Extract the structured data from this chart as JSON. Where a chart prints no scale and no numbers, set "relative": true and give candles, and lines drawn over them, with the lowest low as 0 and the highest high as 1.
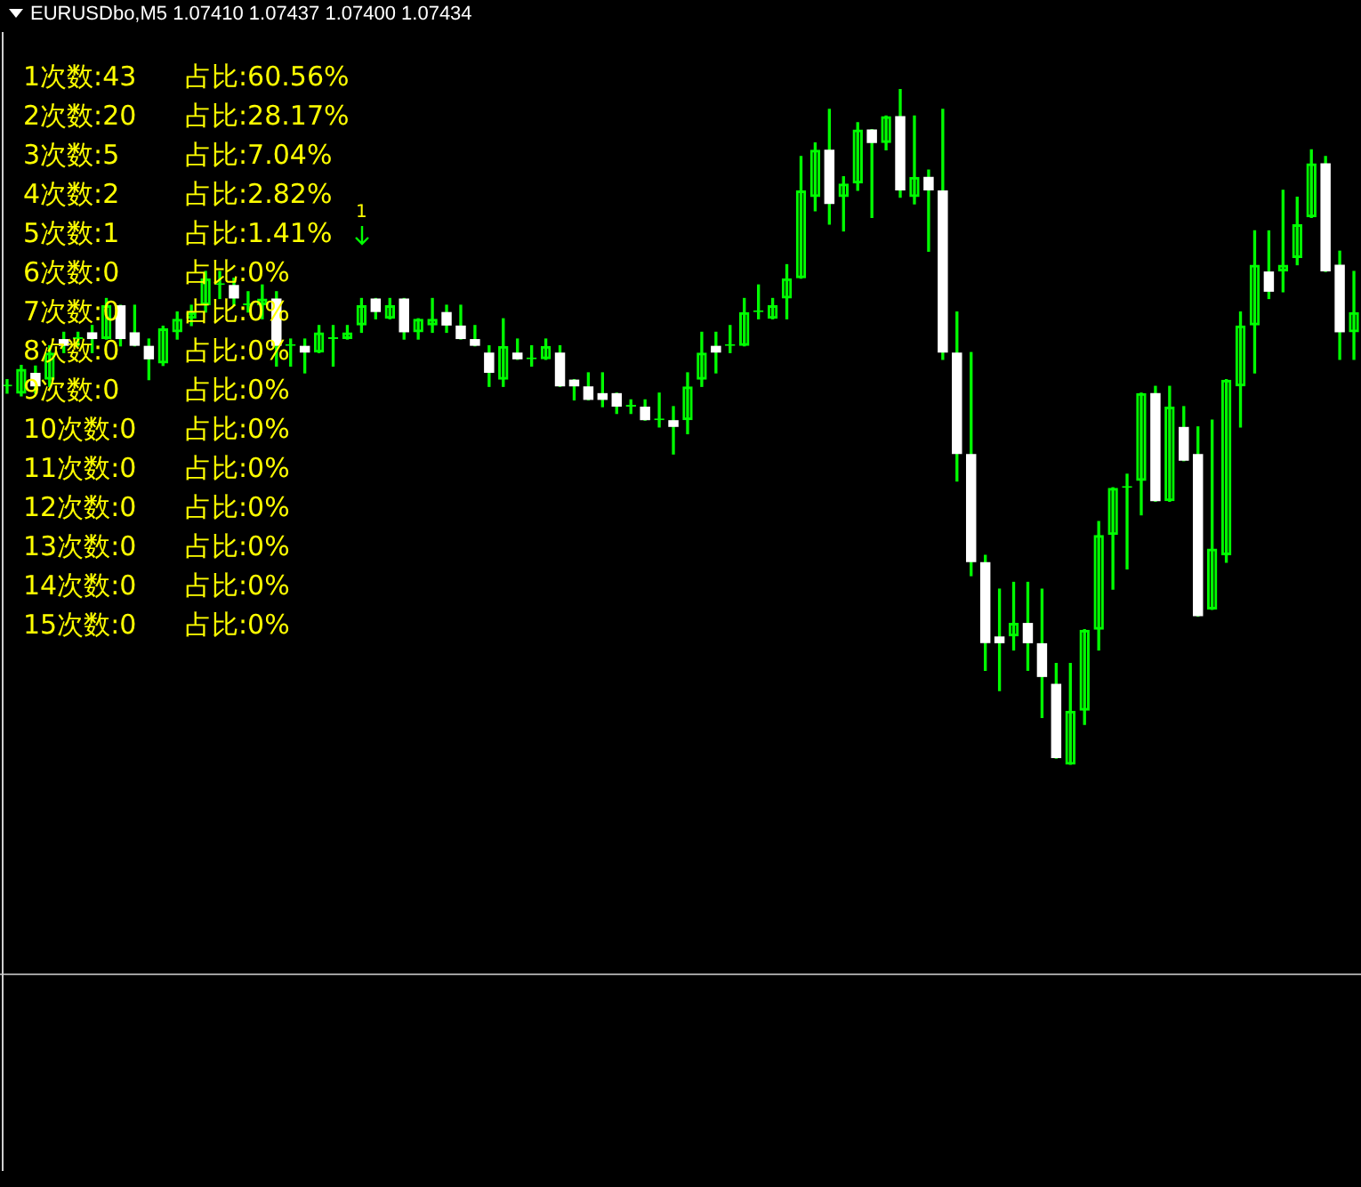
{
  "chart_data": {
    "type": "candlestick",
    "relative": true,
    "title": "EURUSDbo,M5  1.07410 1.07437 1.07400 1.07434",
    "color": "#00ff00",
    "categories": [
      null,
      null,
      null,
      null,
      null,
      null,
      null,
      null,
      null,
      null,
      null,
      null,
      null,
      null,
      null,
      null,
      null,
      null,
      null,
      null,
      null,
      null,
      null,
      null,
      null,
      null,
      null,
      null,
      null,
      null,
      null,
      null,
      null,
      null,
      null,
      null,
      null,
      null,
      null,
      null,
      null,
      null,
      null,
      null,
      null,
      null,
      null,
      null,
      null,
      null,
      null,
      null,
      null,
      null,
      null,
      null,
      null,
      null,
      null,
      null,
      null,
      null,
      null,
      null,
      null,
      null,
      null,
      null,
      null,
      null,
      null,
      null,
      null,
      null,
      null,
      null,
      null,
      null,
      null,
      null,
      null,
      null,
      null,
      null,
      null,
      null,
      null,
      null,
      null,
      null,
      null,
      null,
      null,
      null,
      null,
      null
    ],
    "ohlc": [
      [
        0.56,
        0.57,
        0.55,
        0.56
      ],
      [
        0.549,
        0.591,
        0.546,
        0.586
      ],
      [
        0.58,
        0.59,
        0.55,
        0.56
      ],
      [
        0.57,
        0.62,
        0.56,
        0.61
      ],
      [
        0.63,
        0.64,
        0.61,
        0.62
      ],
      [
        0.63,
        0.64,
        0.62,
        0.63
      ],
      [
        0.64,
        0.65,
        0.61,
        0.63
      ],
      [
        0.63,
        0.69,
        0.63,
        0.68
      ],
      [
        0.68,
        0.68,
        0.62,
        0.63
      ],
      [
        0.64,
        0.68,
        0.62,
        0.62
      ],
      [
        0.62,
        0.63,
        0.57,
        0.6
      ],
      [
        0.594,
        0.649,
        0.591,
        0.646
      ],
      [
        0.64,
        0.67,
        0.63,
        0.66
      ],
      [
        0.66,
        0.68,
        0.65,
        0.67
      ],
      [
        0.68,
        0.73,
        0.67,
        0.72
      ],
      [
        0.71,
        0.73,
        0.69,
        0.71
      ],
      [
        0.71,
        0.72,
        0.68,
        0.69
      ],
      [
        0.68,
        0.7,
        0.67,
        0.68
      ],
      [
        0.68,
        0.71,
        0.66,
        0.69
      ],
      [
        0.69,
        0.7,
        0.59,
        0.62
      ],
      [
        0.62,
        0.63,
        0.59,
        0.62
      ],
      [
        0.62,
        0.63,
        0.58,
        0.61
      ],
      [
        0.61,
        0.65,
        0.61,
        0.64
      ],
      [
        0.63,
        0.65,
        0.59,
        0.63
      ],
      [
        0.63,
        0.65,
        0.63,
        0.64
      ],
      [
        0.65,
        0.69,
        0.64,
        0.68
      ],
      [
        0.69,
        0.69,
        0.66,
        0.67
      ],
      [
        0.66,
        0.69,
        0.66,
        0.68
      ],
      [
        0.69,
        0.69,
        0.63,
        0.64
      ],
      [
        0.64,
        0.66,
        0.63,
        0.66
      ],
      [
        0.65,
        0.69,
        0.64,
        0.66
      ],
      [
        0.67,
        0.68,
        0.64,
        0.65
      ],
      [
        0.65,
        0.68,
        0.63,
        0.63
      ],
      [
        0.63,
        0.65,
        0.62,
        0.62
      ],
      [
        0.61,
        0.62,
        0.56,
        0.58
      ],
      [
        0.57,
        0.66,
        0.56,
        0.62
      ],
      [
        0.61,
        0.63,
        0.6,
        0.6
      ],
      [
        0.6,
        0.62,
        0.59,
        0.6
      ],
      [
        0.6,
        0.63,
        0.6,
        0.62
      ],
      [
        0.61,
        0.62,
        0.56,
        0.56
      ],
      [
        0.57,
        0.57,
        0.54,
        0.56
      ],
      [
        0.56,
        0.58,
        0.54,
        0.54
      ],
      [
        0.55,
        0.58,
        0.53,
        0.54
      ],
      [
        0.55,
        0.55,
        0.52,
        0.53
      ],
      [
        0.53,
        0.54,
        0.52,
        0.53
      ],
      [
        0.53,
        0.54,
        0.51,
        0.51
      ],
      [
        0.51,
        0.55,
        0.5,
        0.51
      ],
      [
        0.51,
        0.53,
        0.46,
        0.5
      ],
      [
        0.51,
        0.58,
        0.49,
        0.56
      ],
      [
        0.57,
        0.64,
        0.56,
        0.61
      ],
      [
        0.62,
        0.64,
        0.58,
        0.61
      ],
      [
        0.62,
        0.65,
        0.61,
        0.62
      ],
      [
        0.62,
        0.69,
        0.62,
        0.67
      ],
      [
        0.67,
        0.71,
        0.66,
        0.67
      ],
      [
        0.66,
        0.69,
        0.66,
        0.68
      ],
      [
        0.69,
        0.74,
        0.66,
        0.72
      ],
      [
        0.72,
        0.9,
        0.72,
        0.85
      ],
      [
        0.84,
        0.92,
        0.82,
        0.91
      ],
      [
        0.91,
        0.97,
        0.8,
        0.83
      ],
      [
        0.84,
        0.87,
        0.79,
        0.86
      ],
      [
        0.86,
        0.95,
        0.85,
        0.94
      ],
      [
        0.94,
        0.94,
        0.81,
        0.92
      ],
      [
        0.92,
        0.96,
        0.91,
        0.96
      ],
      [
        0.96,
        1,
        0.84,
        0.85
      ],
      [
        0.84,
        0.96,
        0.83,
        0.87
      ],
      [
        0.87,
        0.88,
        0.76,
        0.85
      ],
      [
        0.85,
        0.97,
        0.6,
        0.61
      ],
      [
        0.61,
        0.67,
        0.42,
        0.46
      ],
      [
        0.46,
        0.61,
        0.28,
        0.3
      ],
      [
        0.3,
        0.31,
        0.14,
        0.18
      ],
      [
        0.19,
        0.26,
        0.11,
        0.18
      ],
      [
        0.19,
        0.27,
        0.17,
        0.21
      ],
      [
        0.21,
        0.27,
        0.14,
        0.18
      ],
      [
        0.18,
        0.26,
        0.07,
        0.13
      ],
      [
        0.12,
        0.15,
        0.01,
        0.01
      ],
      [
        0,
        0.15,
        0,
        0.08
      ],
      [
        0.08,
        0.2,
        0.06,
        0.2
      ],
      [
        0.2,
        0.36,
        0.17,
        0.34
      ],
      [
        0.34,
        0.41,
        0.26,
        0.41
      ],
      [
        0.41,
        0.43,
        0.29,
        0.41
      ],
      [
        0.42,
        0.55,
        0.37,
        0.55
      ],
      [
        0.55,
        0.56,
        0.39,
        0.39
      ],
      [
        0.39,
        0.56,
        0.39,
        0.53
      ],
      [
        0.5,
        0.53,
        0.45,
        0.45
      ],
      [
        0.46,
        0.5,
        0.22,
        0.22
      ],
      [
        0.23,
        0.51,
        0.23,
        0.32
      ],
      [
        0.31,
        0.57,
        0.3,
        0.57
      ],
      [
        0.56,
        0.67,
        0.5,
        0.65
      ],
      [
        0.65,
        0.79,
        0.58,
        0.74
      ],
      [
        0.73,
        0.79,
        0.69,
        0.7
      ],
      [
        0.73,
        0.85,
        0.7,
        0.74
      ],
      [
        0.75,
        0.84,
        0.74,
        0.8
      ],
      [
        0.81,
        0.91,
        0.81,
        0.89
      ],
      [
        0.89,
        0.9,
        0.73,
        0.73
      ],
      [
        0.74,
        0.76,
        0.6,
        0.64
      ],
      [
        0.64,
        0.73,
        0.6,
        0.67
      ]
    ],
    "colors": [
      "#00ff00",
      "#00ff00",
      "#ffffff",
      "#00ff00",
      "#ffffff",
      "#00ff00",
      "#ffffff",
      "#00ff00",
      "#ffffff",
      "#ffffff",
      "#ffffff",
      "#00ff00",
      "#00ff00",
      "#00ff00",
      "#00ff00",
      "#00ff00",
      "#ffffff",
      "#00ff00",
      "#00ff00",
      "#ffffff",
      "#00ff00",
      "#ffffff",
      "#00ff00",
      "#00ff00",
      "#00ff00",
      "#00ff00",
      "#ffffff",
      "#00ff00",
      "#ffffff",
      "#00ff00",
      "#00ff00",
      "#ffffff",
      "#ffffff",
      "#ffffff",
      "#ffffff",
      "#00ff00",
      "#ffffff",
      "#00ff00",
      "#00ff00",
      "#ffffff",
      "#ffffff",
      "#ffffff",
      "#ffffff",
      "#ffffff",
      "#00ff00",
      "#ffffff",
      "#00ff00",
      "#ffffff",
      "#00ff00",
      "#00ff00",
      "#ffffff",
      "#00ff00",
      "#00ff00",
      "#00ff00",
      "#00ff00",
      "#00ff00",
      "#00ff00",
      "#00ff00",
      "#ffffff",
      "#00ff00",
      "#00ff00",
      "#ffffff",
      "#00ff00",
      "#ffffff",
      "#00ff00",
      "#ffffff",
      "#ffffff",
      "#ffffff",
      "#ffffff",
      "#ffffff",
      "#ffffff",
      "#00ff00",
      "#ffffff",
      "#ffffff",
      "#ffffff",
      "#00ff00",
      "#00ff00",
      "#00ff00",
      "#00ff00",
      "#00ff00",
      "#00ff00",
      "#ffffff",
      "#00ff00",
      "#ffffff",
      "#ffffff",
      "#00ff00",
      "#00ff00",
      "#00ff00",
      "#00ff00",
      "#ffffff",
      "#00ff00",
      "#00ff00",
      "#00ff00",
      "#ffffff",
      "#ffffff",
      "#00ff00"
    ],
    "annotations": [
      "1次数:43",
      "占比:60.56%",
      "2次数:20",
      "占比:28.17%",
      "3次数:5",
      "占比:7.04%",
      "4次数:2",
      "占比:2.82%",
      "5次数:1",
      "占比:1.41%",
      "6次数:0",
      "占比:0%",
      "7次数:0",
      "占比:0%",
      "8次数:0",
      "占比:0%",
      "9次数:0",
      "占比:0%",
      "10次数:0",
      "占比:0%",
      "11次数:0",
      "占比:0%",
      "12次数:0",
      "占比:0%",
      "13次数:0",
      "占比:0%",
      "14次数:0",
      "占比:0%",
      "15次数:0",
      "占比:0%",
      {
        "text": "1"
      }
    ]
  }
}
